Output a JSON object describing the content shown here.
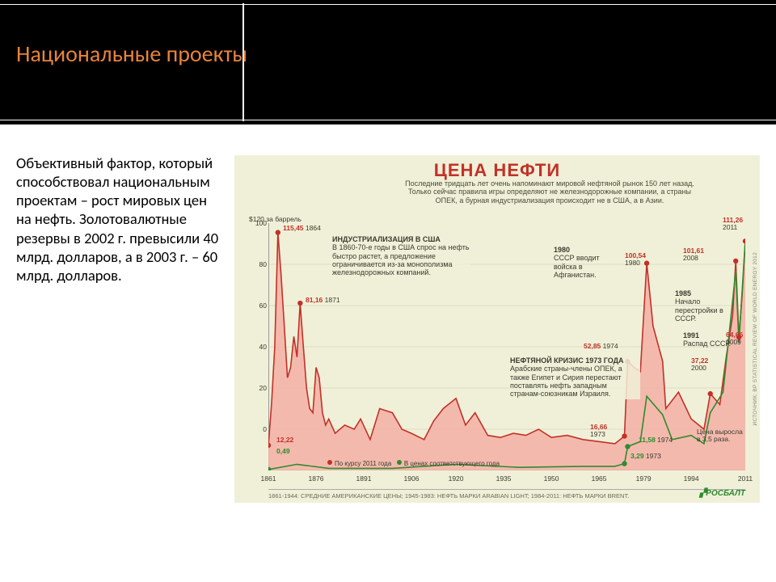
{
  "slide": {
    "title": "Национальные проекты",
    "title_color": "#e8833a",
    "body": "Объективный фактор, который способствовал национальным проектам – рост мировых цен на нефть. Золотовалютные резервы в 2002 г. превысили 40 млрд. долларов, а в 2003 г. – 60 млрд. долларов."
  },
  "chart": {
    "type": "line-area",
    "title": "ЦЕНА НЕФТИ",
    "subtitle": "Последние тридцать лет очень напоминают мировой нефтяной рынок 150 лет назад. Только сейчас правила игры определяют не железнодорожные компании, а страны ОПЕК, а бурная индустриализация происходит не в США, а в Азии.",
    "y_caption": "$120 за баррель",
    "background_color": "#f0f0d8",
    "grid_color": "#c9c9b0",
    "xlim": [
      1861,
      2011
    ],
    "ylim": [
      0,
      120
    ],
    "yticks": [
      0,
      20,
      40,
      60,
      80,
      100
    ],
    "xticks": [
      1861,
      1876,
      1891,
      1906,
      1920,
      1935,
      1950,
      1965,
      1979,
      1994,
      2011
    ],
    "series_red": {
      "label": "По курсу 2011 года",
      "color": "#c23128",
      "fill": "#f4b3a8",
      "points": [
        [
          1861,
          12.22
        ],
        [
          1862,
          32
        ],
        [
          1863,
          60
        ],
        [
          1864,
          115.45
        ],
        [
          1865,
          95
        ],
        [
          1866,
          70
        ],
        [
          1867,
          45
        ],
        [
          1868,
          50
        ],
        [
          1869,
          65
        ],
        [
          1870,
          55
        ],
        [
          1871,
          81.16
        ],
        [
          1872,
          60
        ],
        [
          1873,
          40
        ],
        [
          1874,
          30
        ],
        [
          1875,
          28
        ],
        [
          1876,
          50
        ],
        [
          1877,
          45
        ],
        [
          1878,
          28
        ],
        [
          1879,
          22
        ],
        [
          1880,
          25
        ],
        [
          1882,
          18
        ],
        [
          1885,
          22
        ],
        [
          1888,
          20
        ],
        [
          1890,
          25
        ],
        [
          1893,
          15
        ],
        [
          1896,
          30
        ],
        [
          1900,
          28
        ],
        [
          1903,
          20
        ],
        [
          1906,
          18
        ],
        [
          1910,
          15
        ],
        [
          1913,
          24
        ],
        [
          1916,
          30
        ],
        [
          1920,
          35
        ],
        [
          1923,
          22
        ],
        [
          1926,
          28
        ],
        [
          1930,
          17
        ],
        [
          1934,
          16
        ],
        [
          1938,
          18
        ],
        [
          1942,
          17
        ],
        [
          1946,
          20
        ],
        [
          1950,
          16
        ],
        [
          1955,
          17
        ],
        [
          1960,
          15
        ],
        [
          1965,
          14
        ],
        [
          1970,
          13
        ],
        [
          1973,
          16.66
        ],
        [
          1974,
          52.85
        ],
        [
          1976,
          50
        ],
        [
          1978,
          48
        ],
        [
          1980,
          100.54
        ],
        [
          1982,
          70
        ],
        [
          1985,
          53
        ],
        [
          1986,
          30
        ],
        [
          1990,
          38
        ],
        [
          1994,
          25
        ],
        [
          1998,
          20
        ],
        [
          2000,
          37.22
        ],
        [
          2003,
          32
        ],
        [
          2005,
          55
        ],
        [
          2007,
          75
        ],
        [
          2008,
          101.61
        ],
        [
          2009,
          64.66
        ],
        [
          2010,
          85
        ],
        [
          2011,
          111.26
        ]
      ]
    },
    "series_green": {
      "label": "В ценах соответствующего года",
      "color": "#2e8b2e",
      "points": [
        [
          1861,
          0.49
        ],
        [
          1870,
          3
        ],
        [
          1880,
          1
        ],
        [
          1900,
          1
        ],
        [
          1920,
          3
        ],
        [
          1940,
          1.5
        ],
        [
          1960,
          2
        ],
        [
          1970,
          2
        ],
        [
          1973,
          3.29
        ],
        [
          1974,
          11.58
        ],
        [
          1978,
          14
        ],
        [
          1980,
          36
        ],
        [
          1985,
          27
        ],
        [
          1988,
          15
        ],
        [
          1994,
          17
        ],
        [
          1998,
          13
        ],
        [
          2000,
          28
        ],
        [
          2004,
          38
        ],
        [
          2008,
          97
        ],
        [
          2009,
          62
        ],
        [
          2011,
          111.26
        ]
      ]
    },
    "callouts": [
      {
        "year": 1864,
        "value": "115,45",
        "kind": "red"
      },
      {
        "year": 1871,
        "value": "81,16",
        "kind": "red"
      },
      {
        "year": 1861,
        "value": "12,22",
        "kind": "red"
      },
      {
        "year": 1861,
        "value": "0,49",
        "kind": "green"
      },
      {
        "year": 1973,
        "value": "16,66",
        "kind": "red"
      },
      {
        "year": 1974,
        "value": "52,85",
        "kind": "red"
      },
      {
        "year": 1980,
        "value": "100,54",
        "kind": "red"
      },
      {
        "year": 2008,
        "value": "101,61",
        "kind": "red"
      },
      {
        "year": 2011,
        "value": "111,26",
        "kind": "red"
      },
      {
        "year": 2009,
        "value": "64,66",
        "kind": "red"
      },
      {
        "year": 2000,
        "value": "37,22",
        "kind": "red"
      },
      {
        "year": 1973,
        "value": "3,29",
        "kind": "green"
      },
      {
        "year": 1974,
        "value": "11,58",
        "kind": "green"
      }
    ],
    "text_blocks": {
      "usa": {
        "title": "ИНДУСТРИАЛИЗАЦИЯ В США",
        "body": "В 1860-70-е годы в США спрос на нефть быстро растет, а предложение ограничивается из-за монополизма железнодорожных компаний."
      },
      "afghan": {
        "year": "1980",
        "body": "СССР вводит войска в Афганистан."
      },
      "perestroika": {
        "year": "1985",
        "body": "Начало перестройки в СССР."
      },
      "collapse": {
        "year": "1991",
        "body": "Распад СССР."
      },
      "crisis": {
        "title": "НЕФТЯНОЙ КРИЗИС 1973 ГОДА",
        "body": "Арабские страны-члены ОПЕК, а также Египет и Сирия перестают поставлять нефть западным странам-союзникам Израиля."
      },
      "growth": "Цена выросла в 3,5 раза."
    },
    "footer": "1861-1944: СРЕДНИЕ АМЕРИКАНСКИЕ ЦЕНЫ; 1945-1983: НЕФТЬ МАРКИ ARABIAN LIGHT; 1984-2011: НЕФТЬ МАРКИ BRENT.",
    "source_side": "ИСТОЧНИК: BP STATISTICAL REVIEW OF WORLD ENERGY 2012",
    "logo": "РОСБАЛТ"
  }
}
